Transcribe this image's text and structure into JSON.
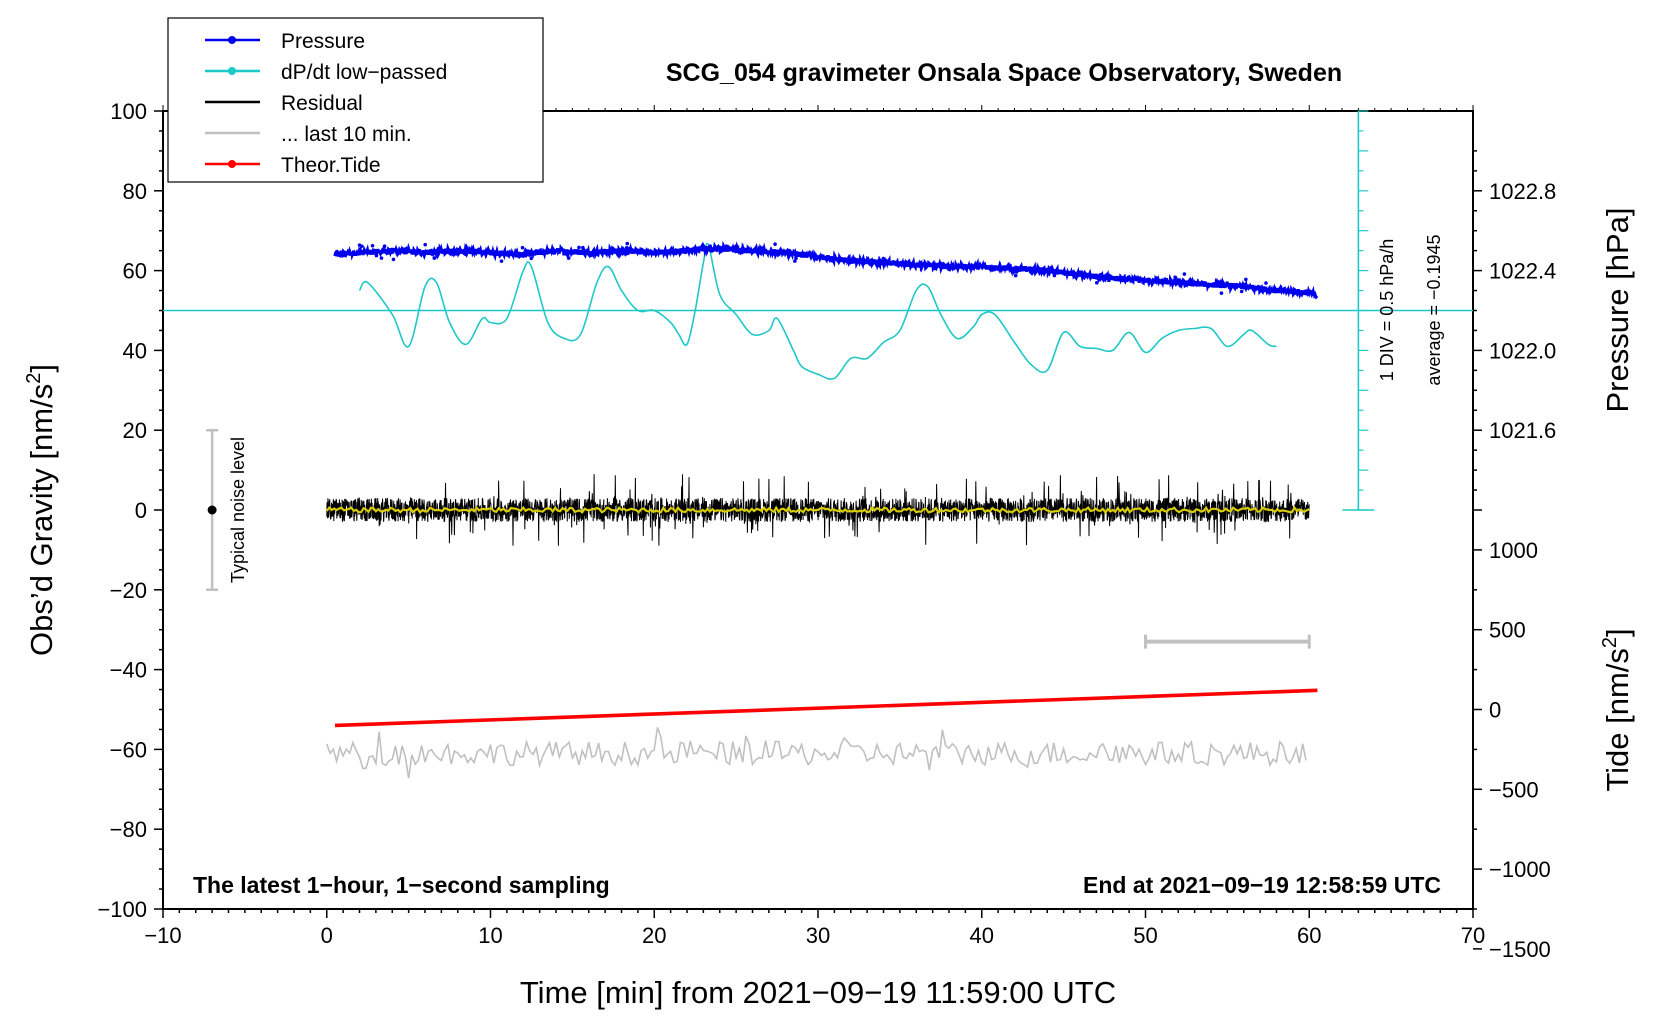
{
  "chart_data": {
    "type": "line",
    "title": "SCG_054 gravimeter Onsala Space Observatory, Sweden",
    "xlabel": "Time [min] from 2021−09−19 11:59:00 UTC",
    "xlim": [
      -10,
      70
    ],
    "x_ticks": [
      "−10",
      "0",
      "10",
      "20",
      "30",
      "40",
      "50",
      "60",
      "70"
    ],
    "x_tick_values": [
      -10,
      0,
      10,
      20,
      30,
      40,
      50,
      60,
      70
    ],
    "y_left": {
      "label_main": "Obs’d Gravity [nm/s",
      "label_sup": "2",
      "label_end": "]",
      "lim": [
        -100,
        100
      ],
      "ticks": [
        "−100",
        "−80",
        "−60",
        "−40",
        "−20",
        "0",
        "20",
        "40",
        "60",
        "80",
        "100"
      ],
      "tick_values": [
        -100,
        -80,
        -60,
        -40,
        -20,
        0,
        20,
        40,
        60,
        80,
        100
      ]
    },
    "y_right_pressure": {
      "label": "Pressure [hPa]",
      "ticks": [
        "1021.6",
        "1022.0",
        "1022.4",
        "1022.8"
      ],
      "tick_values": [
        1021.6,
        1022.0,
        1022.4,
        1022.8
      ],
      "ref_value": 1022.0,
      "ref_gravity": 40,
      "gravity_per_hpa": 50
    },
    "y_right_tide": {
      "label_main": "Tide [nm/s",
      "label_sup": "2",
      "label_end": "]",
      "ticks": [
        "−1500",
        "−1000",
        "−500",
        "0",
        "500",
        "1000"
      ],
      "tick_values": [
        -1500,
        -1000,
        -500,
        0,
        500,
        1000
      ],
      "ref_value": 0,
      "ref_gravity": -50,
      "gravity_per_unit": 0.04
    },
    "series": [
      {
        "name": "Pressure",
        "color": "#0000ee",
        "x": [
          0.5,
          2,
          4,
          6,
          8,
          10,
          12,
          14,
          16,
          18,
          20,
          22,
          23,
          24,
          26,
          28,
          30,
          32,
          34,
          36,
          38,
          40,
          42,
          44,
          46,
          48,
          50,
          52,
          54,
          56,
          58,
          60,
          60.5
        ],
        "y": [
          64,
          64.5,
          65,
          64.5,
          65,
          64.5,
          64,
          65,
          64.5,
          65,
          64.5,
          65,
          65.5,
          65.5,
          65,
          64.5,
          63.5,
          62.5,
          62,
          61.5,
          61,
          61,
          60.5,
          60,
          59,
          58,
          57.5,
          57,
          56.5,
          56,
          55,
          54.5,
          53.5
        ]
      },
      {
        "name": "dP/dt low−passed",
        "color": "#1fc8c8",
        "x": [
          2,
          2.5,
          4,
          5,
          6,
          6.7,
          7.5,
          8.5,
          9.5,
          10,
          11,
          12,
          12.5,
          13.5,
          14.5,
          15.5,
          16.5,
          17.2,
          18,
          19,
          20,
          21,
          21.5,
          22,
          22.5,
          23,
          23.3,
          24,
          25,
          26,
          27,
          27.5,
          28.5,
          29,
          30,
          31,
          32,
          33,
          34,
          35,
          36,
          36.7,
          37.5,
          38.5,
          39.5,
          40,
          40.8,
          42,
          43,
          44,
          45,
          46,
          47,
          48,
          49,
          50,
          51,
          52,
          53,
          54,
          55,
          56,
          56.5,
          57.5,
          58
        ],
        "y": [
          55,
          57,
          49,
          41,
          56,
          57,
          47,
          41.5,
          48,
          47,
          48,
          60,
          61,
          47,
          43,
          44,
          57,
          61,
          55,
          50,
          50,
          47,
          44,
          41.5,
          50,
          62,
          66.5,
          54,
          49,
          44,
          45,
          48,
          40,
          36,
          34,
          33,
          38,
          38,
          42,
          45,
          55,
          56,
          49,
          43,
          46,
          49,
          49,
          42,
          36.5,
          35,
          44.5,
          41,
          40.5,
          40,
          44.5,
          39.5,
          43,
          45,
          45.5,
          45.5,
          41,
          44,
          45,
          41.5,
          41
        ]
      },
      {
        "name": "Residual",
        "color": "#000000",
        "x_start": 0,
        "x_end": 60,
        "center": 0,
        "amplitude": 3
      },
      {
        "name": "... last 10 min.",
        "color": "#c0c0c0",
        "x_start": 0,
        "x_end": 60,
        "center": -61,
        "amplitude": 3
      },
      {
        "name": "Theor.Tide",
        "color": "#ff0000",
        "x": [
          0.5,
          60.5
        ],
        "y_tide": [
          -100,
          120
        ]
      }
    ],
    "pressure_reference_line": 50,
    "scale_bar": {
      "label_div": "1 DIV = 0.5 hPa/h",
      "label_avg": "average = −0.1945",
      "x": 63,
      "y_from": 0,
      "y_to": 100,
      "minor_step": 5
    },
    "noise_bar": {
      "label": "Typical noise level",
      "x": -7,
      "center": 0,
      "half_range": 20
    },
    "ten_min_bar": {
      "x_from": 50,
      "x_to": 60,
      "y": -33
    },
    "legend": {
      "position": "top-left",
      "entries": [
        {
          "label": "Pressure",
          "color": "#0000ee",
          "marker": true
        },
        {
          "label": "dP/dt low−passed",
          "color": "#1fc8c8",
          "marker": true
        },
        {
          "label": "Residual",
          "color": "#000000",
          "marker": false
        },
        {
          "label": "... last 10 min.",
          "color": "#c0c0c0",
          "marker": false
        },
        {
          "label": "Theor.Tide",
          "color": "#ff0000",
          "marker": true
        }
      ]
    },
    "bottom_left_note": "The latest 1−hour, 1−second sampling",
    "bottom_right_note": "End at 2021−09−19 12:58:59 UTC"
  }
}
